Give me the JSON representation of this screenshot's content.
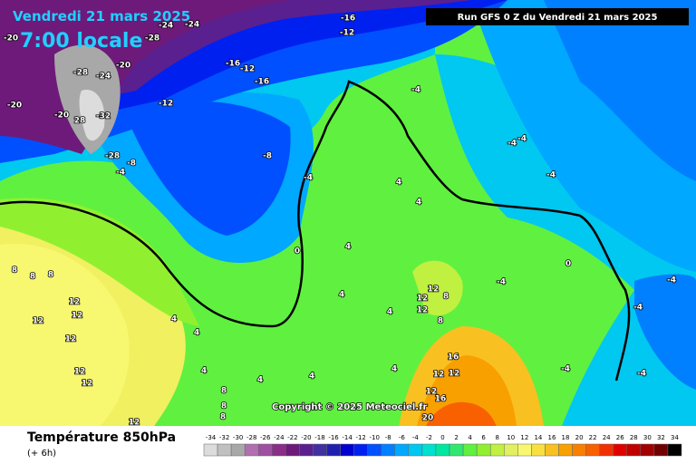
{
  "header": {
    "title": "Vendredi 21 mars 2025",
    "time": "7:00 locale",
    "run": "Run GFS 0 Z du Vendredi 21 mars 2025",
    "copyright": "Copyright © 2025 Meteociel.fr"
  },
  "footer": {
    "variable": "Température 850hPa",
    "step": "(+ 6h)"
  },
  "colorbar": {
    "ticks": [
      -34,
      -32,
      -30,
      -28,
      -26,
      -24,
      -22,
      -20,
      -18,
      -16,
      -14,
      -12,
      -10,
      -8,
      -6,
      -4,
      -2,
      0,
      2,
      4,
      6,
      8,
      10,
      12,
      14,
      16,
      18,
      20,
      22,
      24,
      26,
      28,
      30,
      32,
      34
    ],
    "colors": [
      "#dcdcdc",
      "#c0c0c0",
      "#a8a8a8",
      "#b070b0",
      "#a050a0",
      "#8a2e8a",
      "#6e1a7a",
      "#5a2090",
      "#4030a0",
      "#2020b0",
      "#0000d0",
      "#0020f0",
      "#0050ff",
      "#0080ff",
      "#00a8ff",
      "#00c8f0",
      "#00e0d0",
      "#00e8a0",
      "#30e870",
      "#60f040",
      "#90f030",
      "#c0f040",
      "#e0f060",
      "#f8f870",
      "#f8e040",
      "#f8c020",
      "#f8a000",
      "#f88000",
      "#f86000",
      "#f03000",
      "#e00000",
      "#c00000",
      "#a00000",
      "#700000",
      "#000000"
    ]
  },
  "map_labels": [
    "-24",
    "-24",
    "-16",
    "-12",
    "-20",
    "-28",
    "-20",
    "-28",
    "-24",
    "-16",
    "-12",
    "-16",
    "-20",
    "-20",
    "28",
    "-32",
    "-12",
    "-28",
    "-8",
    "-4",
    "-8",
    "-4",
    "-4",
    "-4",
    "-4",
    "-4",
    "4",
    "4",
    "0",
    "4",
    "8",
    "8",
    "8",
    "12",
    "12",
    "12",
    "12",
    "12",
    "12",
    "12",
    "4",
    "4",
    "4",
    "4",
    "4",
    "4",
    "4",
    "4",
    "12",
    "12",
    "12",
    "8",
    "8",
    "16",
    "12",
    "12",
    "12",
    "16",
    "20",
    "8",
    "8",
    "8",
    "0",
    "-4",
    "-4",
    "-4",
    "-4",
    "-4"
  ]
}
